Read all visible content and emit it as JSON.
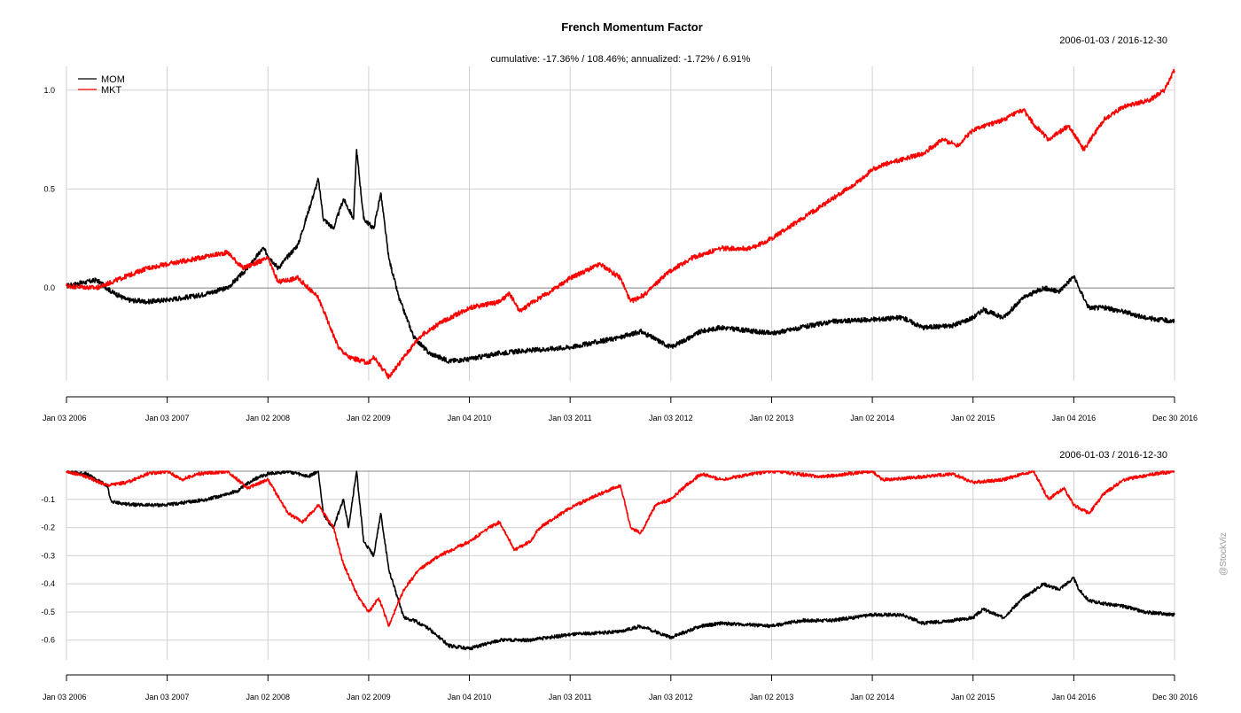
{
  "chart_data": [
    {
      "type": "line",
      "title": "French Momentum Factor",
      "subtitle": "cumulative: -17.36% / 108.46%; annualized: -1.72% / 6.91%",
      "date_range": "2006-01-03 / 2016-12-30",
      "xlabel": "",
      "ylabel": "",
      "xlim": [
        2006.0,
        2017.0
      ],
      "ylim": [
        -0.47,
        1.12
      ],
      "yticks": [
        1.0,
        0.5,
        0.0
      ],
      "ytick_labels": [
        "1.0",
        "0.5",
        "0.0"
      ],
      "xticks": [
        2006.0,
        2007.0,
        2008.0,
        2009.0,
        2010.0,
        2011.0,
        2012.0,
        2013.0,
        2014.0,
        2015.0,
        2016.0,
        2017.0
      ],
      "xtick_labels": [
        "Jan 03 2006",
        "Jan 03 2007",
        "Jan 02 2008",
        "Jan 02 2009",
        "Jan 04 2010",
        "Jan 03 2011",
        "Jan 03 2012",
        "Jan 02 2013",
        "Jan 02 2014",
        "Jan 02 2015",
        "Jan 04 2016",
        "Dec 30 2016"
      ],
      "legend_position": "top-left",
      "grid": true,
      "zero_line": 0.0,
      "series": [
        {
          "name": "MOM",
          "color": "#000000",
          "x": [
            2006.0,
            2006.3,
            2006.45,
            2006.6,
            2006.8,
            2007.0,
            2007.3,
            2007.6,
            2007.8,
            2007.95,
            2008.1,
            2008.3,
            2008.5,
            2008.55,
            2008.65,
            2008.75,
            2008.85,
            2008.88,
            2008.95,
            2009.05,
            2009.12,
            2009.2,
            2009.3,
            2009.45,
            2009.6,
            2009.8,
            2010.0,
            2010.3,
            2010.5,
            2011.0,
            2011.5,
            2011.7,
            2012.0,
            2012.3,
            2012.5,
            2013.0,
            2013.3,
            2013.6,
            2014.0,
            2014.3,
            2014.5,
            2014.8,
            2015.0,
            2015.1,
            2015.3,
            2015.5,
            2015.7,
            2015.85,
            2016.0,
            2016.05,
            2016.15,
            2016.3,
            2016.5,
            2016.7,
            2017.0
          ],
          "values": [
            0.01,
            0.04,
            -0.02,
            -0.06,
            -0.07,
            -0.06,
            -0.04,
            0.0,
            0.1,
            0.2,
            0.1,
            0.22,
            0.55,
            0.35,
            0.3,
            0.45,
            0.35,
            0.7,
            0.35,
            0.3,
            0.48,
            0.15,
            -0.05,
            -0.25,
            -0.33,
            -0.37,
            -0.36,
            -0.33,
            -0.32,
            -0.3,
            -0.25,
            -0.22,
            -0.3,
            -0.22,
            -0.2,
            -0.23,
            -0.2,
            -0.17,
            -0.16,
            -0.15,
            -0.2,
            -0.19,
            -0.15,
            -0.11,
            -0.15,
            -0.05,
            0.0,
            -0.02,
            0.06,
            0.0,
            -0.1,
            -0.1,
            -0.12,
            -0.15,
            -0.17
          ]
        },
        {
          "name": "MKT",
          "color": "#ff0000",
          "x": [
            2006.0,
            2006.3,
            2006.5,
            2006.8,
            2007.0,
            2007.3,
            2007.6,
            2007.75,
            2008.0,
            2008.1,
            2008.3,
            2008.5,
            2008.7,
            2008.8,
            2009.0,
            2009.05,
            2009.2,
            2009.5,
            2009.7,
            2010.0,
            2010.3,
            2010.4,
            2010.5,
            2010.6,
            2010.8,
            2011.0,
            2011.3,
            2011.5,
            2011.6,
            2011.75,
            2011.95,
            2012.2,
            2012.5,
            2012.8,
            2013.0,
            2013.3,
            2013.6,
            2013.9,
            2014.0,
            2014.1,
            2014.5,
            2014.7,
            2014.85,
            2015.0,
            2015.3,
            2015.5,
            2015.6,
            2015.75,
            2015.95,
            2016.1,
            2016.3,
            2016.5,
            2016.75,
            2016.9,
            2017.0
          ],
          "values": [
            0.01,
            0.0,
            0.04,
            0.1,
            0.12,
            0.15,
            0.18,
            0.1,
            0.15,
            0.03,
            0.05,
            -0.05,
            -0.3,
            -0.35,
            -0.38,
            -0.35,
            -0.45,
            -0.25,
            -0.18,
            -0.1,
            -0.07,
            -0.03,
            -0.12,
            -0.08,
            -0.02,
            0.05,
            0.12,
            0.05,
            -0.07,
            -0.03,
            0.07,
            0.15,
            0.2,
            0.2,
            0.25,
            0.35,
            0.45,
            0.55,
            0.6,
            0.62,
            0.68,
            0.75,
            0.72,
            0.8,
            0.85,
            0.9,
            0.83,
            0.75,
            0.82,
            0.7,
            0.85,
            0.92,
            0.95,
            1.0,
            1.1
          ]
        }
      ]
    },
    {
      "type": "line",
      "date_range": "2006-01-03 / 2016-12-30",
      "xlabel": "",
      "ylabel": "",
      "xlim": [
        2006.0,
        2017.0
      ],
      "ylim": [
        -0.67,
        0.0
      ],
      "yticks": [
        -0.1,
        -0.2,
        -0.3,
        -0.4,
        -0.5,
        -0.6
      ],
      "ytick_labels": [
        "-0.1",
        "-0.2",
        "-0.3",
        "-0.4",
        "-0.5",
        "-0.6"
      ],
      "xticks": [
        2006.0,
        2007.0,
        2008.0,
        2009.0,
        2010.0,
        2011.0,
        2012.0,
        2013.0,
        2014.0,
        2015.0,
        2016.0,
        2017.0
      ],
      "xtick_labels": [
        "Jan 03 2006",
        "Jan 03 2007",
        "Jan 02 2008",
        "Jan 02 2009",
        "Jan 04 2010",
        "Jan 03 2011",
        "Jan 03 2012",
        "Jan 02 2013",
        "Jan 02 2014",
        "Jan 02 2015",
        "Jan 04 2016",
        "Dec 30 2016"
      ],
      "grid": true,
      "series": [
        {
          "name": "MOM",
          "color": "#000000",
          "x": [
            2006.0,
            2006.2,
            2006.4,
            2006.45,
            2006.7,
            2007.0,
            2007.4,
            2007.7,
            2007.85,
            2008.0,
            2008.2,
            2008.4,
            2008.5,
            2008.55,
            2008.6,
            2008.65,
            2008.75,
            2008.8,
            2008.88,
            2008.95,
            2009.05,
            2009.12,
            2009.2,
            2009.35,
            2009.45,
            2009.6,
            2009.8,
            2010.0,
            2010.3,
            2010.6,
            2011.0,
            2011.5,
            2011.7,
            2012.0,
            2012.3,
            2012.5,
            2013.0,
            2013.3,
            2013.6,
            2014.0,
            2014.3,
            2014.5,
            2014.8,
            2015.0,
            2015.1,
            2015.3,
            2015.5,
            2015.7,
            2015.85,
            2016.0,
            2016.05,
            2016.15,
            2016.3,
            2016.5,
            2016.7,
            2017.0
          ],
          "values": [
            0.0,
            -0.01,
            -0.05,
            -0.11,
            -0.12,
            -0.12,
            -0.1,
            -0.07,
            -0.03,
            -0.01,
            0.0,
            -0.02,
            0.0,
            -0.15,
            -0.18,
            -0.2,
            -0.1,
            -0.2,
            0.0,
            -0.25,
            -0.3,
            -0.15,
            -0.35,
            -0.52,
            -0.53,
            -0.56,
            -0.62,
            -0.63,
            -0.6,
            -0.6,
            -0.58,
            -0.57,
            -0.55,
            -0.59,
            -0.55,
            -0.54,
            -0.55,
            -0.53,
            -0.53,
            -0.51,
            -0.51,
            -0.54,
            -0.53,
            -0.52,
            -0.49,
            -0.52,
            -0.45,
            -0.4,
            -0.42,
            -0.38,
            -0.42,
            -0.46,
            -0.47,
            -0.48,
            -0.5,
            -0.51
          ]
        },
        {
          "name": "MKT",
          "color": "#ff0000",
          "x": [
            2006.0,
            2006.2,
            2006.4,
            2006.6,
            2006.8,
            2007.0,
            2007.15,
            2007.3,
            2007.6,
            2007.8,
            2008.0,
            2008.2,
            2008.35,
            2008.5,
            2008.65,
            2008.75,
            2008.9,
            2009.0,
            2009.1,
            2009.2,
            2009.35,
            2009.5,
            2009.7,
            2010.0,
            2010.2,
            2010.3,
            2010.45,
            2010.6,
            2010.7,
            2011.0,
            2011.3,
            2011.5,
            2011.6,
            2011.7,
            2011.85,
            2012.0,
            2012.15,
            2012.3,
            2012.5,
            2012.8,
            2013.0,
            2013.5,
            2014.0,
            2014.1,
            2014.5,
            2014.8,
            2015.0,
            2015.3,
            2015.6,
            2015.75,
            2015.9,
            2016.0,
            2016.15,
            2016.3,
            2016.5,
            2016.8,
            2017.0
          ],
          "values": [
            0.0,
            -0.02,
            -0.05,
            -0.04,
            -0.01,
            0.0,
            -0.03,
            -0.01,
            0.0,
            -0.06,
            -0.03,
            -0.15,
            -0.18,
            -0.12,
            -0.2,
            -0.33,
            -0.45,
            -0.5,
            -0.45,
            -0.55,
            -0.42,
            -0.35,
            -0.3,
            -0.25,
            -0.2,
            -0.18,
            -0.28,
            -0.25,
            -0.2,
            -0.13,
            -0.08,
            -0.05,
            -0.2,
            -0.22,
            -0.12,
            -0.1,
            -0.05,
            -0.01,
            -0.03,
            -0.01,
            0.0,
            -0.02,
            0.0,
            -0.03,
            -0.02,
            -0.01,
            -0.04,
            -0.03,
            0.0,
            -0.1,
            -0.06,
            -0.12,
            -0.15,
            -0.08,
            -0.03,
            -0.01,
            0.0
          ]
        }
      ]
    }
  ],
  "watermark": "@StockViz"
}
